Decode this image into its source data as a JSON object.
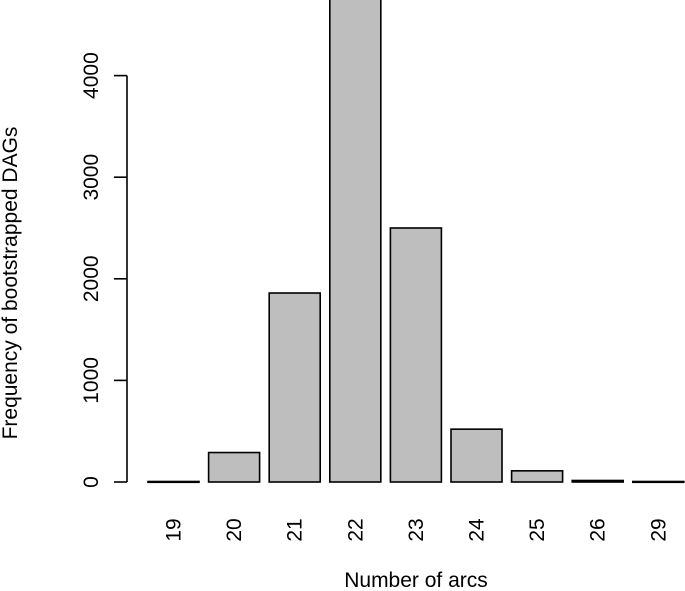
{
  "chart_data": {
    "type": "bar",
    "categories": [
      "19",
      "20",
      "21",
      "22",
      "23",
      "24",
      "25",
      "26",
      "29"
    ],
    "values": [
      5,
      290,
      1860,
      4760,
      2500,
      520,
      110,
      15,
      5
    ],
    "xlabel": "Number of arcs",
    "ylabel": "Frequency of bootstrapped DAGs",
    "yticks": [
      0,
      1000,
      2000,
      3000,
      4000
    ],
    "ylim": [
      0,
      4800
    ],
    "grid": false,
    "legend": "none",
    "bar_color": "#bebebe",
    "edge_color": "#000000"
  }
}
